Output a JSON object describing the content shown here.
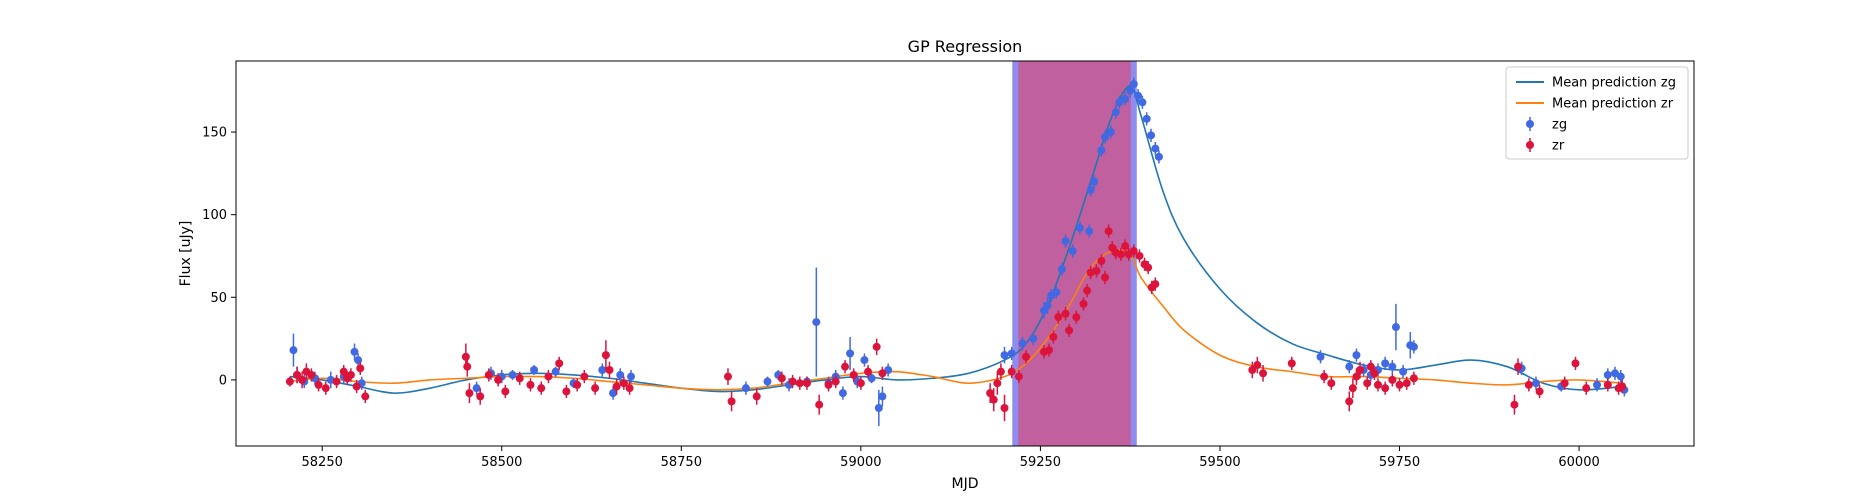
{
  "chart_data": {
    "type": "scatter",
    "title": "GP Regression",
    "xlabel": "MJD",
    "ylabel": "Flux [uJy]",
    "xlim": [
      58130,
      60160
    ],
    "ylim": [
      -40,
      193
    ],
    "xticks": [
      58250,
      58500,
      58750,
      59000,
      59250,
      59500,
      59750,
      60000
    ],
    "yticks": [
      0,
      50,
      100,
      150
    ],
    "grid": false,
    "legend_position": "top-right",
    "colors": {
      "mean_zg": "#1f77b4",
      "mean_zr": "#ff7f0e",
      "zg": "#4169e1",
      "zr": "#dc143c",
      "band_fill": "#c0609e",
      "band_edge": "#8f8cf0"
    },
    "highlight_region": {
      "x_start": 59215,
      "x_end": 59380,
      "edge_width": 6
    },
    "legend": [
      {
        "label": "Mean prediction zg",
        "kind": "line",
        "color": "#1f77b4"
      },
      {
        "label": "Mean prediction zr",
        "kind": "line",
        "color": "#ff7f0e"
      },
      {
        "label": "zg",
        "kind": "errorbar",
        "color": "#4169e1"
      },
      {
        "label": "zr",
        "kind": "errorbar",
        "color": "#dc143c"
      }
    ],
    "series": [
      {
        "name": "Mean prediction zg",
        "kind": "line",
        "color": "#1f77b4",
        "x": [
          58205,
          58250,
          58300,
          58350,
          58400,
          58450,
          58500,
          58550,
          58600,
          58650,
          58700,
          58750,
          58800,
          58850,
          58900,
          58950,
          59000,
          59050,
          59100,
          59150,
          59200,
          59230,
          59260,
          59290,
          59320,
          59350,
          59375,
          59390,
          59420,
          59450,
          59500,
          59550,
          59600,
          59650,
          59700,
          59750,
          59800,
          59850,
          59900,
          59950,
          60000,
          60060
        ],
        "y": [
          2,
          0,
          -4,
          -8,
          -5,
          0,
          3,
          4,
          3,
          1,
          -2,
          -5,
          -7,
          -6,
          -3,
          0,
          2,
          0,
          1,
          4,
          12,
          22,
          45,
          80,
          120,
          160,
          178,
          160,
          115,
          85,
          55,
          35,
          22,
          15,
          9,
          6,
          9,
          12,
          8,
          -2,
          -6,
          -4
        ]
      },
      {
        "name": "Mean prediction zr",
        "kind": "line",
        "color": "#ff7f0e",
        "x": [
          58205,
          58250,
          58300,
          58350,
          58400,
          58450,
          58500,
          58550,
          58600,
          58650,
          58700,
          58750,
          58800,
          58850,
          58900,
          58950,
          59000,
          59050,
          59100,
          59150,
          59200,
          59230,
          59260,
          59290,
          59320,
          59350,
          59375,
          59390,
          59420,
          59450,
          59500,
          59550,
          59600,
          59650,
          59700,
          59750,
          59800,
          59850,
          59900,
          59950,
          60000,
          60060
        ],
        "y": [
          -1,
          1,
          -1,
          -2,
          0,
          1,
          2,
          2,
          1,
          -1,
          -3,
          -5,
          -6,
          -5,
          -2,
          1,
          4,
          5,
          2,
          -2,
          2,
          10,
          25,
          45,
          68,
          78,
          76,
          62,
          45,
          30,
          15,
          8,
          5,
          2,
          2,
          1,
          0,
          -2,
          -3,
          -1,
          0,
          -2
        ]
      },
      {
        "name": "zg",
        "kind": "errorbar",
        "color": "#4169e1",
        "points": [
          [
            58210,
            18,
            10
          ],
          [
            58215,
            3,
            5
          ],
          [
            58225,
            -1,
            4
          ],
          [
            58240,
            1,
            4
          ],
          [
            58262,
            0,
            5
          ],
          [
            58280,
            2,
            4
          ],
          [
            58295,
            17,
            5
          ],
          [
            58300,
            12,
            4
          ],
          [
            58305,
            -2,
            4
          ],
          [
            58465,
            -5,
            4
          ],
          [
            58485,
            4,
            4
          ],
          [
            58500,
            2,
            4
          ],
          [
            58515,
            3,
            3
          ],
          [
            58545,
            6,
            3
          ],
          [
            58575,
            5,
            3
          ],
          [
            58600,
            -2,
            3
          ],
          [
            58640,
            6,
            4
          ],
          [
            58655,
            -8,
            4
          ],
          [
            58665,
            3,
            4
          ],
          [
            58680,
            2,
            4
          ],
          [
            58840,
            -5,
            4
          ],
          [
            58870,
            -1,
            3
          ],
          [
            58885,
            3,
            3
          ],
          [
            58900,
            -3,
            4
          ],
          [
            58925,
            -1,
            3
          ],
          [
            58938,
            35,
            33
          ],
          [
            58955,
            -2,
            4
          ],
          [
            58965,
            2,
            4
          ],
          [
            58975,
            -8,
            4
          ],
          [
            58985,
            16,
            10
          ],
          [
            58995,
            -1,
            4
          ],
          [
            59005,
            12,
            4
          ],
          [
            59015,
            1,
            3
          ],
          [
            59025,
            -17,
            11
          ],
          [
            59030,
            -10,
            6
          ],
          [
            59038,
            6,
            4
          ],
          [
            59200,
            15,
            5
          ],
          [
            59210,
            16,
            4
          ],
          [
            59225,
            22,
            4
          ],
          [
            59240,
            25,
            4
          ],
          [
            59255,
            42,
            5
          ],
          [
            59260,
            45,
            5
          ],
          [
            59265,
            51,
            4
          ],
          [
            59272,
            53,
            4
          ],
          [
            59280,
            67,
            4
          ],
          [
            59285,
            84,
            4
          ],
          [
            59295,
            78,
            4
          ],
          [
            59305,
            92,
            4
          ],
          [
            59318,
            90,
            4
          ],
          [
            59320,
            115,
            4
          ],
          [
            59325,
            120,
            4
          ],
          [
            59335,
            139,
            4
          ],
          [
            59340,
            147,
            4
          ],
          [
            59348,
            150,
            4
          ],
          [
            59355,
            162,
            4
          ],
          [
            59360,
            168,
            4
          ],
          [
            59368,
            170,
            4
          ],
          [
            59375,
            175,
            4
          ],
          [
            59380,
            179,
            4
          ],
          [
            59386,
            172,
            4
          ],
          [
            59392,
            168,
            4
          ],
          [
            59398,
            158,
            4
          ],
          [
            59404,
            148,
            4
          ],
          [
            59410,
            140,
            4
          ],
          [
            59415,
            135,
            4
          ],
          [
            59640,
            14,
            4
          ],
          [
            59680,
            8,
            4
          ],
          [
            59690,
            15,
            4
          ],
          [
            59700,
            6,
            4
          ],
          [
            59710,
            3,
            4
          ],
          [
            59720,
            6,
            4
          ],
          [
            59730,
            10,
            4
          ],
          [
            59740,
            8,
            4
          ],
          [
            59745,
            32,
            14
          ],
          [
            59755,
            5,
            4
          ],
          [
            59765,
            21,
            8
          ],
          [
            59770,
            20,
            4
          ],
          [
            59920,
            7,
            4
          ],
          [
            59940,
            -2,
            4
          ],
          [
            59975,
            -4,
            3
          ],
          [
            60025,
            -3,
            4
          ],
          [
            60040,
            3,
            4
          ],
          [
            60050,
            4,
            4
          ],
          [
            60058,
            2,
            4
          ],
          [
            60063,
            -6,
            4
          ]
        ]
      },
      {
        "name": "zr",
        "kind": "errorbar",
        "color": "#dc143c",
        "points": [
          [
            58205,
            -1,
            3
          ],
          [
            58215,
            3,
            5
          ],
          [
            58222,
            0,
            5
          ],
          [
            58228,
            5,
            5
          ],
          [
            58235,
            3,
            4
          ],
          [
            58245,
            -3,
            4
          ],
          [
            58255,
            -5,
            4
          ],
          [
            58270,
            -1,
            4
          ],
          [
            58280,
            5,
            4
          ],
          [
            58285,
            1,
            4
          ],
          [
            58290,
            3,
            4
          ],
          [
            58298,
            -4,
            4
          ],
          [
            58303,
            7,
            4
          ],
          [
            58310,
            -10,
            4
          ],
          [
            58450,
            14,
            8
          ],
          [
            58452,
            8,
            6
          ],
          [
            58455,
            -8,
            6
          ],
          [
            58470,
            -10,
            5
          ],
          [
            58482,
            3,
            4
          ],
          [
            58495,
            0,
            4
          ],
          [
            58505,
            -7,
            4
          ],
          [
            58525,
            1,
            4
          ],
          [
            58540,
            -3,
            4
          ],
          [
            58555,
            -5,
            4
          ],
          [
            58565,
            2,
            4
          ],
          [
            58580,
            10,
            4
          ],
          [
            58590,
            -7,
            4
          ],
          [
            58605,
            -3,
            4
          ],
          [
            58615,
            2,
            4
          ],
          [
            58630,
            -5,
            4
          ],
          [
            58645,
            15,
            9
          ],
          [
            58650,
            6,
            5
          ],
          [
            58660,
            -4,
            5
          ],
          [
            58670,
            -2,
            4
          ],
          [
            58678,
            -5,
            4
          ],
          [
            58815,
            2,
            5
          ],
          [
            58820,
            -13,
            6
          ],
          [
            58855,
            -10,
            5
          ],
          [
            58890,
            1,
            4
          ],
          [
            58905,
            -1,
            4
          ],
          [
            58915,
            -2,
            4
          ],
          [
            58925,
            -2,
            4
          ],
          [
            58942,
            -15,
            6
          ],
          [
            58955,
            -3,
            4
          ],
          [
            58965,
            -1,
            4
          ],
          [
            58978,
            8,
            4
          ],
          [
            58990,
            3,
            4
          ],
          [
            59000,
            -2,
            4
          ],
          [
            59010,
            5,
            4
          ],
          [
            59022,
            20,
            5
          ],
          [
            59030,
            4,
            4
          ],
          [
            59180,
            -8,
            6
          ],
          [
            59185,
            -12,
            7
          ],
          [
            59190,
            -2,
            7
          ],
          [
            59195,
            5,
            5
          ],
          [
            59200,
            -17,
            8
          ],
          [
            59210,
            5,
            4
          ],
          [
            59220,
            2,
            4
          ],
          [
            59230,
            14,
            4
          ],
          [
            59255,
            17,
            4
          ],
          [
            59262,
            18,
            4
          ],
          [
            59268,
            26,
            4
          ],
          [
            59275,
            38,
            4
          ],
          [
            59285,
            40,
            4
          ],
          [
            59290,
            30,
            4
          ],
          [
            59300,
            38,
            4
          ],
          [
            59310,
            46,
            4
          ],
          [
            59315,
            54,
            4
          ],
          [
            59320,
            65,
            4
          ],
          [
            59328,
            66,
            4
          ],
          [
            59335,
            72,
            4
          ],
          [
            59340,
            62,
            4
          ],
          [
            59345,
            90,
            4
          ],
          [
            59350,
            80,
            4
          ],
          [
            59355,
            77,
            4
          ],
          [
            59362,
            76,
            4
          ],
          [
            59368,
            81,
            4
          ],
          [
            59373,
            76,
            4
          ],
          [
            59380,
            78,
            4
          ],
          [
            59388,
            75,
            4
          ],
          [
            59395,
            70,
            4
          ],
          [
            59400,
            68,
            4
          ],
          [
            59405,
            56,
            4
          ],
          [
            59410,
            58,
            4
          ],
          [
            59545,
            6,
            5
          ],
          [
            59552,
            9,
            5
          ],
          [
            59560,
            4,
            5
          ],
          [
            59600,
            10,
            4
          ],
          [
            59645,
            2,
            4
          ],
          [
            59655,
            -2,
            4
          ],
          [
            59680,
            -13,
            6
          ],
          [
            59685,
            -5,
            6
          ],
          [
            59690,
            2,
            5
          ],
          [
            59695,
            6,
            5
          ],
          [
            59705,
            -2,
            4
          ],
          [
            59710,
            8,
            4
          ],
          [
            59715,
            4,
            4
          ],
          [
            59720,
            -3,
            4
          ],
          [
            59730,
            -5,
            4
          ],
          [
            59740,
            0,
            4
          ],
          [
            59750,
            -3,
            4
          ],
          [
            59760,
            -2,
            4
          ],
          [
            59770,
            1,
            4
          ],
          [
            59910,
            -15,
            6
          ],
          [
            59915,
            8,
            5
          ],
          [
            59930,
            -3,
            4
          ],
          [
            59945,
            -7,
            4
          ],
          [
            59980,
            -2,
            4
          ],
          [
            59995,
            10,
            4
          ],
          [
            60010,
            -5,
            4
          ],
          [
            60040,
            -3,
            4
          ],
          [
            60055,
            -5,
            4
          ],
          [
            60060,
            -4,
            4
          ]
        ]
      }
    ]
  }
}
